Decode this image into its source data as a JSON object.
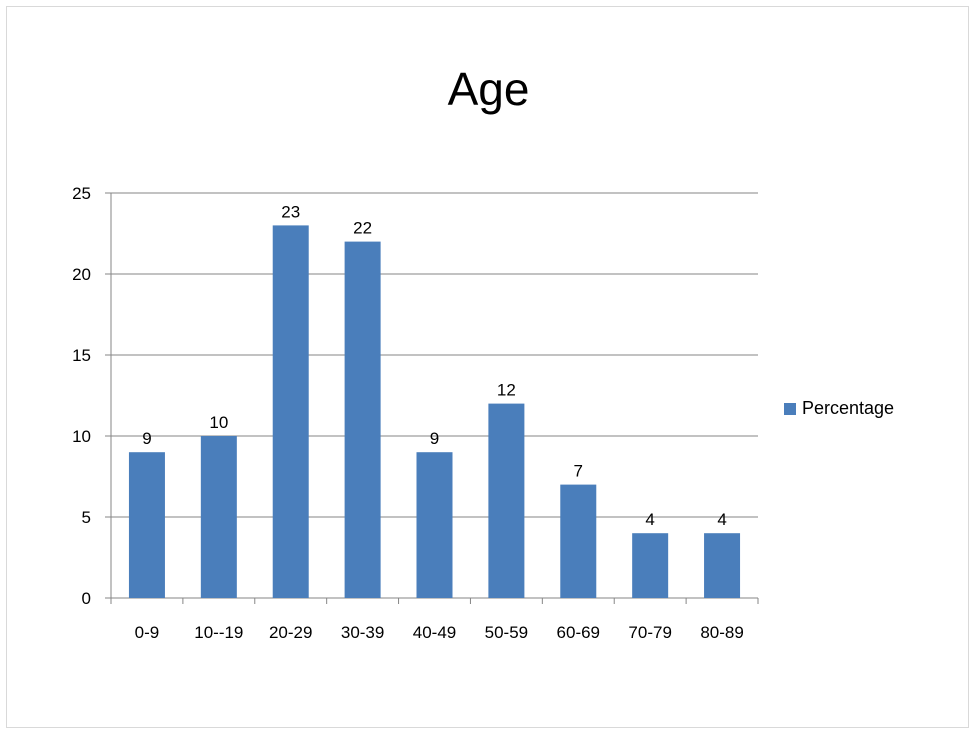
{
  "chart_data": {
    "type": "bar",
    "title": "Age",
    "categories": [
      "0-9",
      "10--19",
      "20-29",
      "30-39",
      "40-49",
      "50-59",
      "60-69",
      "70-79",
      "80-89"
    ],
    "series": [
      {
        "name": "Percentage",
        "values": [
          9,
          10,
          23,
          22,
          9,
          12,
          7,
          4,
          4
        ]
      }
    ],
    "data_labels": [
      "9",
      "10",
      "23",
      "22",
      "9",
      "12",
      "7",
      "4",
      "4"
    ],
    "ylim": [
      0,
      25
    ],
    "yticks": [
      "0",
      "5",
      "10",
      "15",
      "20",
      "25"
    ],
    "grid": true,
    "legend": "right",
    "colors": {
      "bar": "#4a7ebb",
      "grid": "#868686",
      "axis": "#868686"
    }
  }
}
